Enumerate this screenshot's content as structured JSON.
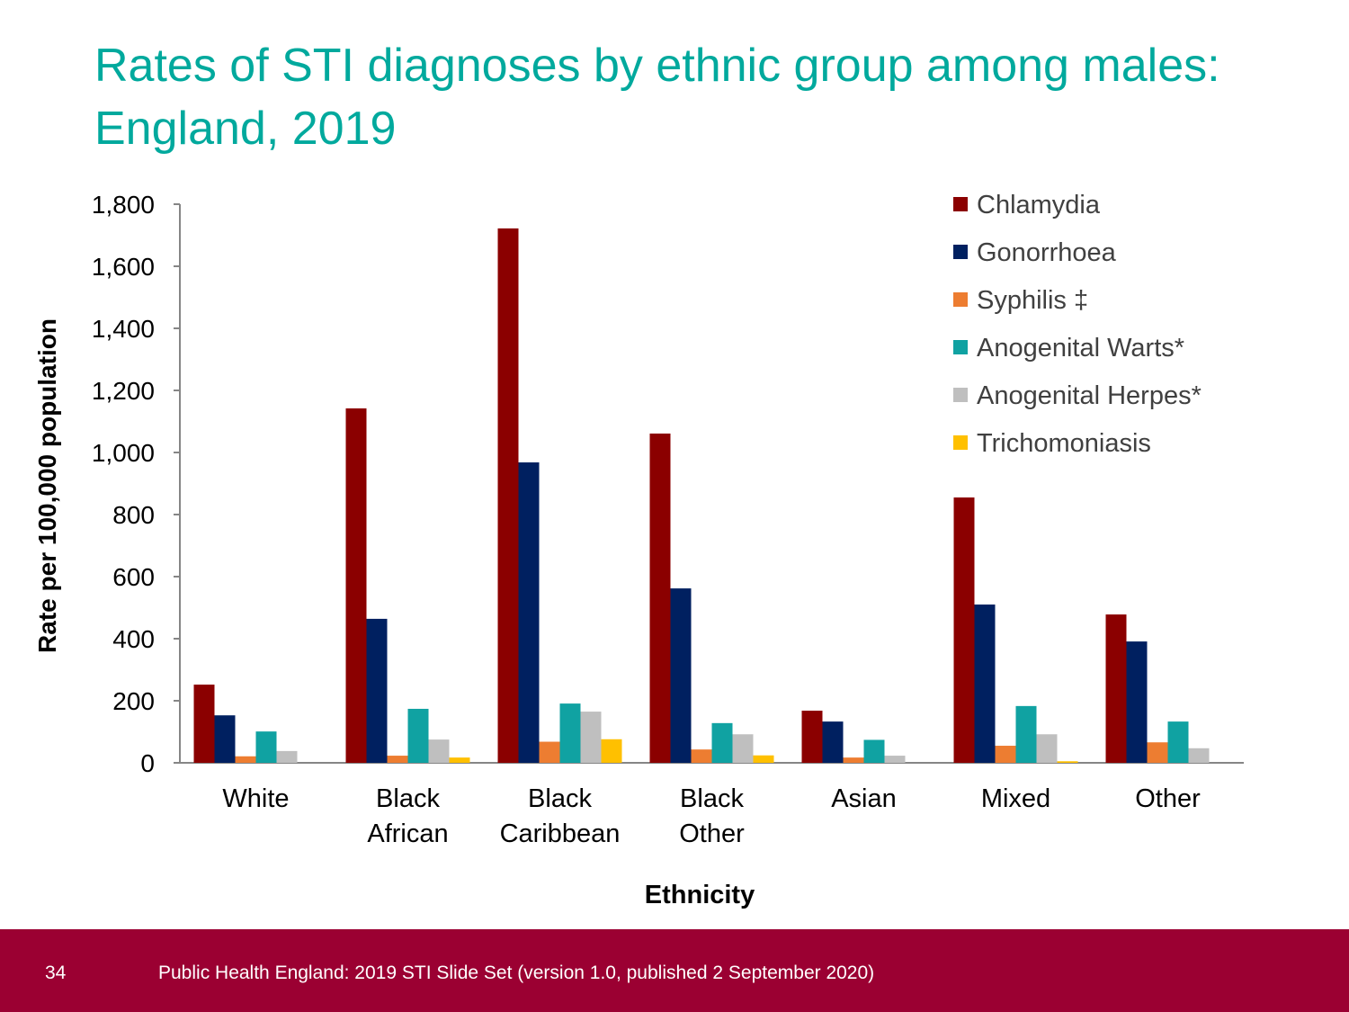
{
  "title": "Rates of STI diagnoses by ethnic group among males: England, 2019",
  "footer": {
    "page_number": "34",
    "source": "Public Health England: 2019 STI Slide Set (version 1.0, published 2 September 2020)"
  },
  "chart_data": {
    "type": "bar",
    "title": "Rates of STI diagnoses by ethnic group among males: England, 2019",
    "xlabel": "Ethnicity",
    "ylabel": "Rate per 100,000 population",
    "ylim": [
      0,
      1800
    ],
    "yticks": [
      "0",
      "200",
      "400",
      "600",
      "800",
      "1,000",
      "1,200",
      "1,400",
      "1,600",
      "1,800"
    ],
    "grid": false,
    "legend_position": "top-right",
    "categories": [
      [
        "White"
      ],
      [
        "Black",
        "African"
      ],
      [
        "Black",
        "Caribbean"
      ],
      [
        "Black",
        "Other"
      ],
      [
        "Asian"
      ],
      [
        "Mixed"
      ],
      [
        "Other"
      ]
    ],
    "series": [
      {
        "name": "Chlamydia",
        "color": "#8b0000",
        "values": [
          252,
          1142,
          1722,
          1061,
          168,
          855,
          478
        ]
      },
      {
        "name": "Gonorrhoea",
        "color": "#002060",
        "values": [
          153,
          464,
          968,
          562,
          133,
          510,
          391
        ]
      },
      {
        "name": "Syphilis ‡",
        "color": "#ed7d31",
        "values": [
          21,
          23,
          68,
          43,
          17,
          55,
          66
        ]
      },
      {
        "name": "Anogenital Warts*",
        "color": "#10a2a2",
        "values": [
          101,
          174,
          191,
          128,
          74,
          183,
          133
        ]
      },
      {
        "name": "Anogenital Herpes*",
        "color": "#bfbfbf",
        "values": [
          38,
          75,
          165,
          92,
          23,
          92,
          47
        ]
      },
      {
        "name": "Trichomoniasis",
        "color": "#ffc000",
        "values": [
          0,
          17,
          76,
          24,
          0,
          5,
          0
        ]
      }
    ]
  }
}
